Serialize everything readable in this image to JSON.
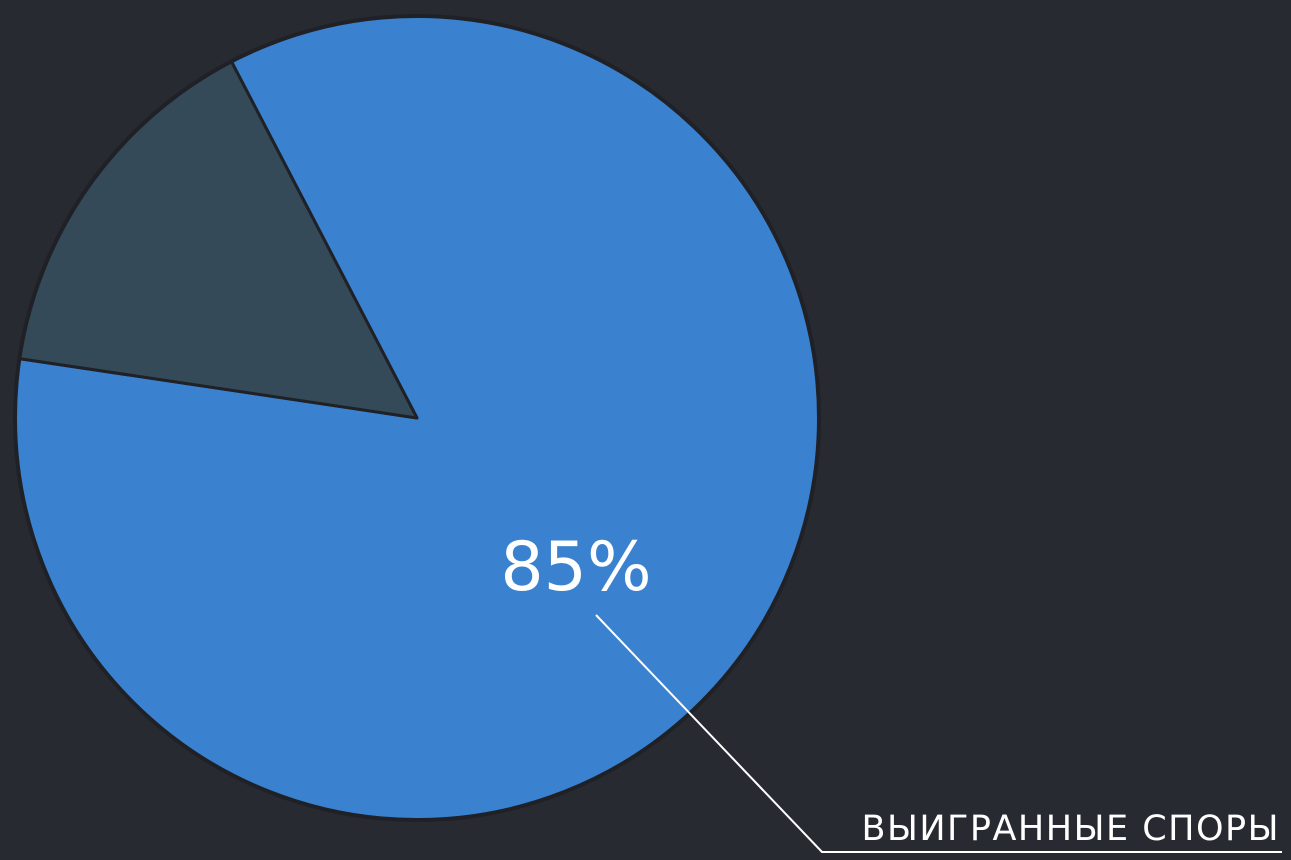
{
  "colors": {
    "background": "#282a31",
    "primary_slice": "#3a82cf",
    "secondary_slice": "#354a58",
    "slice_border": "#1f2126",
    "leader_line": "#ffffff",
    "text": "#ffffff"
  },
  "chart_data": {
    "type": "pie",
    "title": "",
    "slices": [
      {
        "name": "ВЫИГРАННЫЕ СПОРЫ",
        "value": 85,
        "label": "85%",
        "color": "#3a82cf"
      },
      {
        "name": "",
        "value": 15,
        "label": "",
        "color": "#354a58"
      }
    ],
    "legend": "bottom-right"
  }
}
